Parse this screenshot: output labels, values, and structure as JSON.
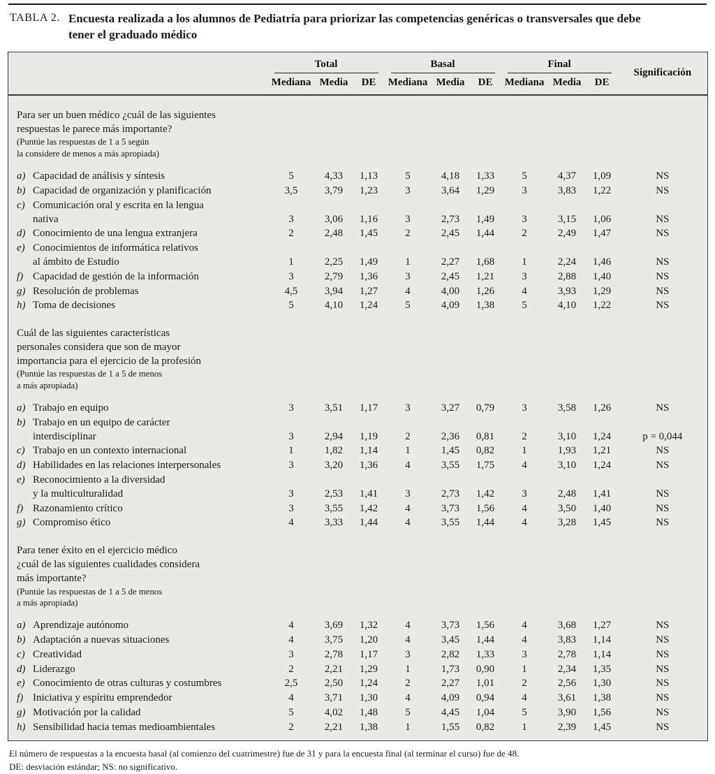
{
  "page": {
    "title_tag": "TABLA 2.",
    "title_text": "Encuesta realizada a los alumnos de Pediatría para priorizar las competencias genéricas o transversales que debe tener el graduado médico"
  },
  "table": {
    "col_groups": [
      "Total",
      "Basal",
      "Final"
    ],
    "sub_headers": [
      "Mediana",
      "Media",
      "DE"
    ],
    "sig_header": "Significación",
    "sections": [
      {
        "question": [
          "Para ser un buen médico ¿cuál de las siguientes",
          "respuestas le parece más importante?"
        ],
        "note": [
          "(Puntúe las respuestas de 1 a 5 según",
          "la considere de menos a más apropiada)"
        ],
        "rows": [
          {
            "letter": "a)",
            "label": [
              "Capacidad de análisis y síntesis"
            ],
            "values": [
              "5",
              "4,33",
              "1,13",
              "5",
              "4,18",
              "1,33",
              "5",
              "4,37",
              "1,09"
            ],
            "sig": "NS"
          },
          {
            "letter": "b)",
            "label": [
              "Capacidad de organización y planificación"
            ],
            "values": [
              "3,5",
              "3,79",
              "1,23",
              "3",
              "3,64",
              "1,29",
              "3",
              "3,83",
              "1,22"
            ],
            "sig": "NS"
          },
          {
            "letter": "c)",
            "label": [
              "Comunicación oral y escrita en la lengua",
              "nativa"
            ],
            "values": [
              "3",
              "3,06",
              "1,16",
              "3",
              "2,73",
              "1,49",
              "3",
              "3,15",
              "1,06"
            ],
            "sig": "NS"
          },
          {
            "letter": "d)",
            "label": [
              "Conocimiento de una lengua extranjera"
            ],
            "values": [
              "2",
              "2,48",
              "1,45",
              "2",
              "2,45",
              "1,44",
              "2",
              "2,49",
              "1,47"
            ],
            "sig": "NS"
          },
          {
            "letter": "e)",
            "label": [
              "Conocimientos de informática relativos",
              "al ámbito de Estudio"
            ],
            "values": [
              "1",
              "2,25",
              "1,49",
              "1",
              "2,27",
              "1,68",
              "1",
              "2,24",
              "1,46"
            ],
            "sig": "NS"
          },
          {
            "letter": "f)",
            "label": [
              "Capacidad de gestión de la información"
            ],
            "values": [
              "3",
              "2,79",
              "1,36",
              "3",
              "2,45",
              "1,21",
              "3",
              "2,88",
              "1,40"
            ],
            "sig": "NS"
          },
          {
            "letter": "g)",
            "label": [
              "Resolución de problemas"
            ],
            "values": [
              "4,5",
              "3,94",
              "1,27",
              "4",
              "4,00",
              "1,26",
              "4",
              "3,93",
              "1,29"
            ],
            "sig": "NS"
          },
          {
            "letter": "h)",
            "label": [
              "Toma de decisiones"
            ],
            "values": [
              "5",
              "4,10",
              "1,24",
              "5",
              "4,09",
              "1,38",
              "5",
              "4,10",
              "1,22"
            ],
            "sig": "NS"
          }
        ]
      },
      {
        "question": [
          "Cuál de las siguientes características",
          "personales considera que son de mayor",
          "importancia para el ejercicio de la profesión"
        ],
        "note": [
          "(Puntúe las respuestas de 1 a 5 de menos",
          "a más apropiada)"
        ],
        "rows": [
          {
            "letter": "a)",
            "label": [
              "Trabajo en equipo"
            ],
            "values": [
              "3",
              "3,51",
              "1,17",
              "3",
              "3,27",
              "0,79",
              "3",
              "3,58",
              "1,26"
            ],
            "sig": "NS"
          },
          {
            "letter": "b)",
            "label": [
              "Trabajo en un equipo de carácter",
              "interdisciplinar"
            ],
            "values": [
              "3",
              "2,94",
              "1,19",
              "2",
              "2,36",
              "0,81",
              "2",
              "3,10",
              "1,24"
            ],
            "sig": "p = 0,044"
          },
          {
            "letter": "c)",
            "label": [
              "Trabajo en un contexto internacional"
            ],
            "values": [
              "1",
              "1,82",
              "1,14",
              "1",
              "1,45",
              "0,82",
              "1",
              "1,93",
              "1,21"
            ],
            "sig": "NS"
          },
          {
            "letter": "d)",
            "label": [
              "Habilidades en las relaciones interpersonales"
            ],
            "values": [
              "3",
              "3,20",
              "1,36",
              "4",
              "3,55",
              "1,75",
              "4",
              "3,10",
              "1,24"
            ],
            "sig": "NS"
          },
          {
            "letter": "e)",
            "label": [
              "Reconocimiento a la diversidad",
              "y la multiculturalidad"
            ],
            "values": [
              "3",
              "2,53",
              "1,41",
              "3",
              "2,73",
              "1,42",
              "3",
              "2,48",
              "1,41"
            ],
            "sig": "NS"
          },
          {
            "letter": "f)",
            "label": [
              "Razonamiento crítico"
            ],
            "values": [
              "3",
              "3,55",
              "1,42",
              "4",
              "3,73",
              "1,56",
              "4",
              "3,50",
              "1,40"
            ],
            "sig": "NS"
          },
          {
            "letter": "g)",
            "label": [
              "Compromiso ético"
            ],
            "values": [
              "4",
              "3,33",
              "1,44",
              "4",
              "3,55",
              "1,44",
              "4",
              "3,28",
              "1,45"
            ],
            "sig": "NS"
          }
        ]
      },
      {
        "question": [
          "Para tener éxito en el ejercicio médico",
          "¿cuál de las siguientes cualidades considera",
          "más importante?"
        ],
        "note": [
          "(Puntúe las respuestas de 1 a 5 de menos",
          "a más apropiada)"
        ],
        "rows": [
          {
            "letter": "a)",
            "label": [
              "Aprendizaje autónomo"
            ],
            "values": [
              "4",
              "3,69",
              "1,32",
              "4",
              "3,73",
              "1,56",
              "4",
              "3,68",
              "1,27"
            ],
            "sig": "NS"
          },
          {
            "letter": "b)",
            "label": [
              "Adaptación a nuevas situaciones"
            ],
            "values": [
              "4",
              "3,75",
              "1,20",
              "4",
              "3,45",
              "1,44",
              "4",
              "3,83",
              "1,14"
            ],
            "sig": "NS"
          },
          {
            "letter": "c)",
            "label": [
              "Creatividad"
            ],
            "values": [
              "3",
              "2,78",
              "1,17",
              "3",
              "2,82",
              "1,33",
              "3",
              "2,78",
              "1,14"
            ],
            "sig": "NS"
          },
          {
            "letter": "d)",
            "label": [
              "Liderazgo"
            ],
            "values": [
              "2",
              "2,21",
              "1,29",
              "1",
              "1,73",
              "0,90",
              "1",
              "2,34",
              "1,35"
            ],
            "sig": "NS"
          },
          {
            "letter": "e)",
            "label": [
              "Conocimiento de otras culturas y costumbres"
            ],
            "values": [
              "2,5",
              "2,50",
              "1,24",
              "2",
              "2,27",
              "1,01",
              "2",
              "2,56",
              "1,30"
            ],
            "sig": "NS"
          },
          {
            "letter": "f)",
            "label": [
              "Iniciativa y espíritu emprendedor"
            ],
            "values": [
              "4",
              "3,71",
              "1,30",
              "4",
              "4,09",
              "0,94",
              "4",
              "3,61",
              "1,38"
            ],
            "sig": "NS"
          },
          {
            "letter": "g)",
            "label": [
              "Motivación por la calidad"
            ],
            "values": [
              "5",
              "4,02",
              "1,48",
              "5",
              "4,45",
              "1,04",
              "5",
              "3,90",
              "1,56"
            ],
            "sig": "NS"
          },
          {
            "letter": "h)",
            "label": [
              "Sensibilidad hacia temas medioambientales"
            ],
            "values": [
              "2",
              "2,21",
              "1,38",
              "1",
              "1,55",
              "0,82",
              "1",
              "2,39",
              "1,45"
            ],
            "sig": "NS"
          }
        ]
      }
    ]
  },
  "footnotes": [
    "El número de respuestas a la encuesta basal (al comienzo del cuatrimestre) fue de 31 y para la encuesta final (al terminar el curso) fue de 48.",
    "DE: desviación estándar; NS: no significativo."
  ],
  "colors": {
    "table_bg": "#e9e9e6",
    "border": "#3a3a3a",
    "text": "#1c1c1c"
  }
}
